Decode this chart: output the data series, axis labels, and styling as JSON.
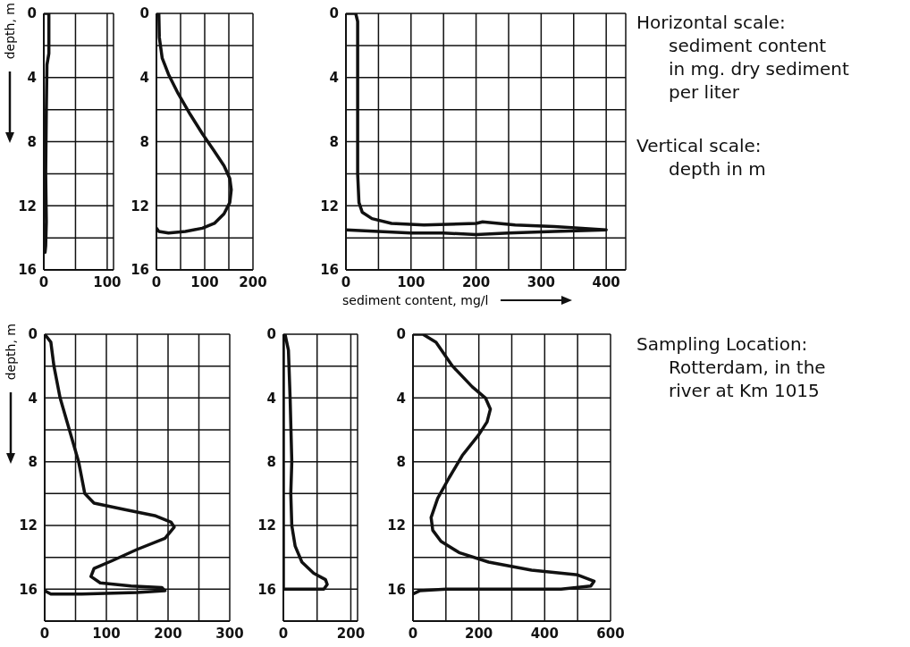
{
  "chart_data": [
    {
      "type": "line",
      "ylabel": "depth, m",
      "xlim": [
        0,
        110
      ],
      "xticks": [
        0,
        {
          "value": 50,
          "label": null
        },
        100
      ],
      "ylim": [
        16,
        0
      ],
      "yticks": [
        0,
        {
          "value": 2,
          "label": null
        },
        4,
        {
          "value": 6,
          "label": null
        },
        8,
        {
          "value": 10,
          "label": null
        },
        12,
        {
          "value": 14,
          "label": null
        },
        16
      ],
      "grid": true,
      "series": [
        {
          "color": "#111111",
          "x": [
            0,
            8,
            8,
            5,
            4,
            3,
            4,
            3,
            2,
            0,
            0
          ],
          "values": [
            0,
            0,
            2.5,
            3.2,
            6,
            10,
            13,
            14.5,
            14.9,
            14.6,
            14
          ]
        }
      ]
    },
    {
      "type": "line",
      "xlim": [
        0,
        200
      ],
      "xticks": [
        0,
        {
          "value": 50,
          "label": null
        },
        100,
        {
          "value": 150,
          "label": null
        },
        200
      ],
      "ylim": [
        16,
        0
      ],
      "yticks": [
        0,
        {
          "value": 2,
          "label": null
        },
        4,
        {
          "value": 6,
          "label": null
        },
        8,
        {
          "value": 10,
          "label": null
        },
        12,
        {
          "value": 14,
          "label": null
        },
        16
      ],
      "grid": true,
      "series": [
        {
          "color": "#111111",
          "x": [
            0,
            5,
            6,
            12,
            25,
            45,
            70,
            95,
            120,
            140,
            152,
            155,
            152,
            140,
            120,
            95,
            60,
            25,
            5,
            0
          ],
          "values": [
            0,
            0,
            1.5,
            2.8,
            3.8,
            5,
            6.3,
            7.5,
            8.6,
            9.5,
            10.3,
            11,
            11.8,
            12.5,
            13.1,
            13.4,
            13.6,
            13.7,
            13.6,
            13.4
          ]
        }
      ]
    },
    {
      "type": "line",
      "xlabel": "sediment content, mg/l",
      "xlim": [
        0,
        430
      ],
      "xticks": [
        0,
        {
          "value": 50,
          "label": null
        },
        100,
        {
          "value": 150,
          "label": null
        },
        200,
        {
          "value": 250,
          "label": null
        },
        300,
        {
          "value": 350,
          "label": null
        },
        400
      ],
      "ylim": [
        16,
        0
      ],
      "yticks": [
        0,
        {
          "value": 2,
          "label": null
        },
        4,
        {
          "value": 6,
          "label": null
        },
        8,
        {
          "value": 10,
          "label": null
        },
        12,
        {
          "value": 14,
          "label": null
        },
        16
      ],
      "grid": true,
      "series": [
        {
          "color": "#111111",
          "x": [
            0,
            15,
            18,
            18,
            20,
            25,
            40,
            70,
            120,
            200,
            210,
            260,
            320,
            400,
            320,
            250,
            200,
            150,
            100,
            50,
            0
          ],
          "values": [
            0,
            0,
            0.5,
            10,
            11.8,
            12.4,
            12.8,
            13.1,
            13.2,
            13.1,
            13.0,
            13.2,
            13.3,
            13.5,
            13.6,
            13.7,
            13.8,
            13.7,
            13.7,
            13.6,
            13.5
          ]
        }
      ]
    },
    {
      "type": "line",
      "ylabel": "depth, m",
      "xlim": [
        0,
        300
      ],
      "xticks": [
        0,
        {
          "value": 50,
          "label": null
        },
        100,
        {
          "value": 150,
          "label": null
        },
        200,
        {
          "value": 250,
          "label": null
        },
        300
      ],
      "ylim": [
        18,
        0
      ],
      "yticks": [
        0,
        {
          "value": 2,
          "label": null
        },
        4,
        {
          "value": 6,
          "label": null
        },
        8,
        {
          "value": 10,
          "label": null
        },
        12,
        {
          "value": 14,
          "label": null
        },
        16,
        {
          "value": 18,
          "label": null
        }
      ],
      "grid": true,
      "series": [
        {
          "color": "#111111",
          "x": [
            0,
            10,
            15,
            25,
            40,
            55,
            65,
            80,
            130,
            180,
            205,
            210,
            195,
            150,
            110,
            80,
            75,
            90,
            140,
            190,
            195,
            150,
            60,
            10,
            0
          ],
          "values": [
            0,
            0.5,
            2,
            4,
            6,
            8,
            10,
            10.6,
            11,
            11.4,
            11.8,
            12.1,
            12.8,
            13.5,
            14.2,
            14.7,
            15.2,
            15.6,
            15.8,
            15.9,
            16.1,
            16.2,
            16.3,
            16.3,
            16.1
          ]
        }
      ]
    },
    {
      "type": "line",
      "xlim": [
        0,
        220
      ],
      "xticks": [
        0,
        {
          "value": 100,
          "label": null
        },
        200
      ],
      "ylim": [
        18,
        0
      ],
      "yticks": [
        0,
        {
          "value": 2,
          "label": null
        },
        4,
        {
          "value": 6,
          "label": null
        },
        8,
        {
          "value": 10,
          "label": null
        },
        12,
        {
          "value": 14,
          "label": null
        },
        16,
        {
          "value": 18,
          "label": null
        }
      ],
      "grid": true,
      "series": [
        {
          "color": "#111111",
          "x": [
            5,
            15,
            20,
            25,
            22,
            25,
            35,
            55,
            90,
            125,
            130,
            120,
            60,
            0,
            0
          ],
          "values": [
            0,
            1,
            4,
            8,
            10,
            12,
            13.3,
            14.3,
            15,
            15.4,
            15.7,
            16,
            16,
            16,
            0
          ]
        }
      ]
    },
    {
      "type": "line",
      "xlim": [
        0,
        600
      ],
      "xticks": [
        0,
        {
          "value": 100,
          "label": null
        },
        200,
        {
          "value": 300,
          "label": null
        },
        400,
        {
          "value": 500,
          "label": null
        },
        600
      ],
      "ylim": [
        18,
        0
      ],
      "yticks": [
        0,
        {
          "value": 2,
          "label": null
        },
        4,
        {
          "value": 6,
          "label": null
        },
        8,
        {
          "value": 10,
          "label": null
        },
        12,
        {
          "value": 14,
          "label": null
        },
        16,
        {
          "value": 18,
          "label": null
        }
      ],
      "grid": true,
      "series": [
        {
          "color": "#111111",
          "x": [
            0,
            30,
            70,
            120,
            180,
            220,
            235,
            225,
            200,
            150,
            110,
            75,
            55,
            60,
            85,
            140,
            230,
            360,
            500,
            550,
            540,
            450,
            300,
            100,
            20,
            0
          ],
          "values": [
            0,
            0,
            0.5,
            2,
            3.3,
            4,
            4.7,
            5.5,
            6.3,
            7.6,
            9,
            10.3,
            11.5,
            12.3,
            13,
            13.7,
            14.3,
            14.8,
            15.1,
            15.5,
            15.8,
            16,
            16,
            16,
            16.1,
            16.3
          ]
        }
      ]
    },
    {
      "type": "other",
      "title": "Horizontal scale:",
      "annotations": [
        "sediment content",
        "in mg. dry sediment",
        "per liter"
      ]
    },
    {
      "type": "other",
      "title": "Vertical scale:",
      "annotations": [
        "depth in m"
      ]
    },
    {
      "type": "other",
      "title": "Sampling Location:",
      "annotations": [
        "Rotterdam, in the",
        "river at Km 1015"
      ]
    }
  ]
}
